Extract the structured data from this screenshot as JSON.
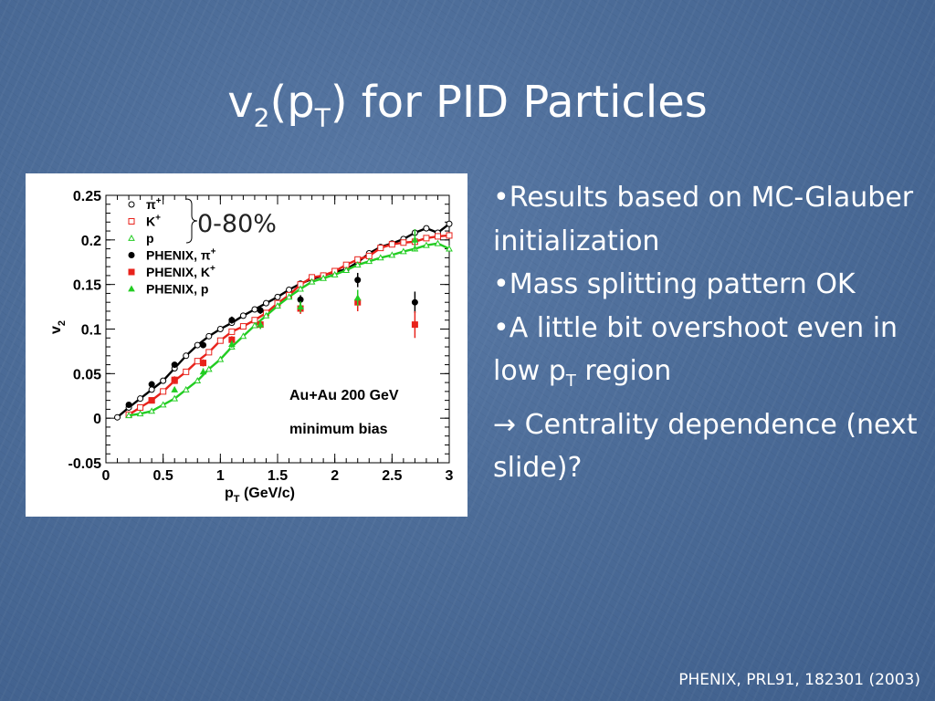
{
  "slide": {
    "title_parts": [
      "v",
      "2",
      "(p",
      "T",
      ") for PID Particles"
    ],
    "bullets": [
      {
        "parts": [
          "•Results based on MC-Glauber initialization"
        ]
      },
      {
        "parts": [
          "•Mass splitting pattern OK"
        ]
      },
      {
        "parts": [
          "•A little bit overshoot even in low p",
          "T",
          " region"
        ]
      },
      {
        "arrow": "→",
        "parts": [
          " Centrality dependence (next slide)?"
        ]
      }
    ],
    "citation": "PHENIX, PRL91, 182301 (2003)"
  },
  "chart_data": {
    "type": "scatter",
    "xlabel_parts": [
      "p",
      "T",
      " (GeV/c)"
    ],
    "ylabel_parts": [
      "v",
      "2"
    ],
    "xlim": [
      0,
      3
    ],
    "ylim": [
      -0.05,
      0.25
    ],
    "xticks": [
      "0",
      "0.5",
      "1",
      "1.5",
      "2",
      "2.5",
      "3"
    ],
    "yticks": [
      "-0.05",
      "0",
      "0.05",
      "0.1",
      "0.15",
      "0.2",
      "0.25"
    ],
    "centrality_label": "0-80%",
    "annotations": [
      "Au+Au 200 GeV",
      "minimum bias"
    ],
    "colors": {
      "pion": "#000000",
      "kaon": "#e8221b",
      "proton": "#22cc22"
    },
    "legend": [
      {
        "sym": "π",
        "sup": "+",
        "label": "",
        "marker": "open-circle",
        "color": "#000000"
      },
      {
        "sym": "K",
        "sup": "+",
        "label": "",
        "marker": "open-square",
        "color": "#e8221b"
      },
      {
        "sym": "p",
        "sup": "",
        "label": "",
        "marker": "open-triangle",
        "color": "#22cc22"
      },
      {
        "sym": "PHENIX, π",
        "sup": "+",
        "label": "",
        "marker": "filled-circle",
        "color": "#000000"
      },
      {
        "sym": "PHENIX, K",
        "sup": "+",
        "label": "",
        "marker": "filled-square",
        "color": "#e8221b"
      },
      {
        "sym": "PHENIX, p",
        "sup": "",
        "label": "",
        "marker": "filled-triangle",
        "color": "#22cc22"
      }
    ],
    "model_series": [
      {
        "id": "pion",
        "color": "#000000",
        "marker": "open-circle",
        "x": [
          0.1,
          0.2,
          0.3,
          0.4,
          0.5,
          0.6,
          0.7,
          0.8,
          0.9,
          1.0,
          1.1,
          1.2,
          1.3,
          1.4,
          1.5,
          1.6,
          1.7,
          1.8,
          1.9,
          2.0,
          2.1,
          2.2,
          2.3,
          2.4,
          2.5,
          2.6,
          2.7,
          2.8,
          2.9,
          3.0
        ],
        "y": [
          0.001,
          0.012,
          0.022,
          0.032,
          0.042,
          0.056,
          0.07,
          0.082,
          0.092,
          0.1,
          0.107,
          0.115,
          0.122,
          0.129,
          0.136,
          0.144,
          0.151,
          0.156,
          0.16,
          0.164,
          0.167,
          0.175,
          0.185,
          0.192,
          0.196,
          0.201,
          0.208,
          0.213,
          0.208,
          0.218
        ]
      },
      {
        "id": "kaon",
        "color": "#e8221b",
        "marker": "open-square",
        "x": [
          0.2,
          0.3,
          0.4,
          0.5,
          0.6,
          0.7,
          0.8,
          0.9,
          1.0,
          1.1,
          1.2,
          1.3,
          1.4,
          1.5,
          1.6,
          1.7,
          1.8,
          1.9,
          2.0,
          2.1,
          2.2,
          2.3,
          2.4,
          2.5,
          2.6,
          2.7,
          2.8,
          2.9,
          3.0
        ],
        "y": [
          0.004,
          0.012,
          0.02,
          0.03,
          0.042,
          0.052,
          0.064,
          0.074,
          0.087,
          0.097,
          0.103,
          0.11,
          0.118,
          0.129,
          0.138,
          0.15,
          0.158,
          0.16,
          0.165,
          0.172,
          0.178,
          0.182,
          0.191,
          0.195,
          0.197,
          0.198,
          0.202,
          0.204,
          0.205
        ]
      },
      {
        "id": "proton",
        "color": "#22cc22",
        "marker": "open-triangle",
        "x": [
          0.2,
          0.3,
          0.4,
          0.5,
          0.6,
          0.7,
          0.8,
          0.9,
          1.0,
          1.1,
          1.2,
          1.3,
          1.4,
          1.5,
          1.6,
          1.7,
          1.8,
          1.9,
          2.0,
          2.1,
          2.2,
          2.3,
          2.4,
          2.5,
          2.6,
          2.7,
          2.8,
          2.9,
          3.0
        ],
        "y": [
          0.003,
          0.005,
          0.008,
          0.015,
          0.022,
          0.032,
          0.042,
          0.055,
          0.066,
          0.08,
          0.092,
          0.104,
          0.115,
          0.126,
          0.136,
          0.145,
          0.153,
          0.157,
          0.161,
          0.166,
          0.172,
          0.176,
          0.18,
          0.183,
          0.187,
          0.19,
          0.194,
          0.196,
          0.19
        ]
      }
    ],
    "data_series": [
      {
        "id": "phenix-pion",
        "color": "#000000",
        "marker": "filled-circle",
        "x": [
          0.2,
          0.4,
          0.6,
          0.85,
          1.1,
          1.35,
          1.7,
          2.2,
          2.7
        ],
        "y": [
          0.015,
          0.038,
          0.06,
          0.082,
          0.11,
          0.121,
          0.133,
          0.155,
          0.13
        ],
        "err": [
          0.002,
          0.003,
          0.003,
          0.003,
          0.004,
          0.004,
          0.005,
          0.008,
          0.012
        ]
      },
      {
        "id": "phenix-kaon",
        "color": "#e8221b",
        "marker": "filled-square",
        "x": [
          0.4,
          0.6,
          0.85,
          1.1,
          1.35,
          1.7,
          2.2,
          2.7
        ],
        "y": [
          0.02,
          0.043,
          0.062,
          0.088,
          0.105,
          0.123,
          0.13,
          0.105
        ],
        "err": [
          0.003,
          0.004,
          0.004,
          0.004,
          0.005,
          0.006,
          0.01,
          0.015
        ]
      },
      {
        "id": "phenix-proton",
        "color": "#22cc22",
        "marker": "filled-triangle",
        "x": [
          0.6,
          0.85,
          1.1,
          1.35,
          1.7,
          2.2,
          2.7
        ],
        "y": [
          0.032,
          0.052,
          0.083,
          0.105,
          0.125,
          0.135,
          0.2
        ],
        "err": [
          0.003,
          0.004,
          0.004,
          0.005,
          0.006,
          0.009,
          0.012
        ]
      }
    ]
  }
}
